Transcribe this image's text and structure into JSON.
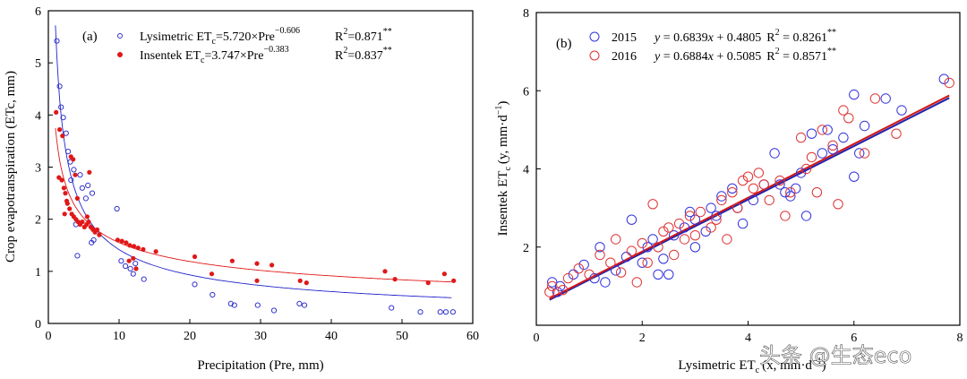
{
  "chart_data": [
    {
      "type": "scatter",
      "panel_label": "(a)",
      "xlabel": "Precipitation (Pre, mm)",
      "ylabel": "Crop evapotranspiration (ETc, mm)",
      "xlim": [
        0,
        60
      ],
      "ylim": [
        0,
        6
      ],
      "xticks": [
        0,
        10,
        20,
        30,
        40,
        50,
        60
      ],
      "yticks": [
        0,
        1,
        2,
        3,
        4,
        5,
        6
      ],
      "series": [
        {
          "name": "Lysimetric",
          "marker": "open-circle",
          "color": "#3333cc",
          "legend_name": "Lysimetric ET",
          "legend_sub": "c",
          "legend_eq": "=5.720×Pre",
          "legend_exp": "−0.606",
          "legend_r2": "R",
          "legend_r2_sup": "2",
          "legend_r2_val": "=0.871",
          "legend_sig": "**",
          "fit": {
            "a": 5.72,
            "b": -0.606,
            "color": "#2222cc"
          },
          "points": [
            [
              1.2,
              5.42
            ],
            [
              1.6,
              4.55
            ],
            [
              1.8,
              4.15
            ],
            [
              2.1,
              3.95
            ],
            [
              2.5,
              3.65
            ],
            [
              2.8,
              3.3
            ],
            [
              3.1,
              3.1
            ],
            [
              3.6,
              2.95
            ],
            [
              3.2,
              2.75
            ],
            [
              4.5,
              2.85
            ],
            [
              4.8,
              2.6
            ],
            [
              5.6,
              2.65
            ],
            [
              5.3,
              2.4
            ],
            [
              6.2,
              2.5
            ],
            [
              6.4,
              1.6
            ],
            [
              6.1,
              1.55
            ],
            [
              3.9,
              1.9
            ],
            [
              4.1,
              1.3
            ],
            [
              9.7,
              2.2
            ],
            [
              10.3,
              1.2
            ],
            [
              10.9,
              1.1
            ],
            [
              11.6,
              1.05
            ],
            [
              12.3,
              1.15
            ],
            [
              13.5,
              0.85
            ],
            [
              12.0,
              0.95
            ],
            [
              20.7,
              0.75
            ],
            [
              23.2,
              0.55
            ],
            [
              25.8,
              0.38
            ],
            [
              26.3,
              0.35
            ],
            [
              29.6,
              0.35
            ],
            [
              31.9,
              0.25
            ],
            [
              35.5,
              0.38
            ],
            [
              36.2,
              0.35
            ],
            [
              48.5,
              0.3
            ],
            [
              52.6,
              0.22
            ],
            [
              55.4,
              0.22
            ],
            [
              57.2,
              0.22
            ],
            [
              56.2,
              0.22
            ]
          ]
        },
        {
          "name": "Insentek",
          "marker": "filled-circle",
          "color": "#e01818",
          "legend_name": "Insentek ET",
          "legend_sub": "c",
          "legend_eq": "=3.747×Pre",
          "legend_exp": "−0.383",
          "legend_r2": "R",
          "legend_r2_sup": "2",
          "legend_r2_val": "=0.837",
          "legend_sig": "**",
          "fit": {
            "a": 3.747,
            "b": -0.383,
            "color": "#e01818"
          },
          "points": [
            [
              1.1,
              4.05
            ],
            [
              1.6,
              3.72
            ],
            [
              2.0,
              3.6
            ],
            [
              1.5,
              2.8
            ],
            [
              1.9,
              2.75
            ],
            [
              2.2,
              2.6
            ],
            [
              2.4,
              2.5
            ],
            [
              2.6,
              2.35
            ],
            [
              2.7,
              2.3
            ],
            [
              3.0,
              2.2
            ],
            [
              3.3,
              2.1
            ],
            [
              3.6,
              2.05
            ],
            [
              3.9,
              2.0
            ],
            [
              4.2,
              1.95
            ],
            [
              4.5,
              1.9
            ],
            [
              4.8,
              1.95
            ],
            [
              5.1,
              1.85
            ],
            [
              5.4,
              1.9
            ],
            [
              5.7,
              1.95
            ],
            [
              6.0,
              1.85
            ],
            [
              6.3,
              1.8
            ],
            [
              6.6,
              1.75
            ],
            [
              3.5,
              3.15
            ],
            [
              3.8,
              2.85
            ],
            [
              4.1,
              2.4
            ],
            [
              5.5,
              2.05
            ],
            [
              5.8,
              2.9
            ],
            [
              3.2,
              3.2
            ],
            [
              2.3,
              2.1
            ],
            [
              6.9,
              1.8
            ],
            [
              7.2,
              1.7
            ],
            [
              9.8,
              1.6
            ],
            [
              10.4,
              1.58
            ],
            [
              11.0,
              1.55
            ],
            [
              11.5,
              1.5
            ],
            [
              12.1,
              1.48
            ],
            [
              12.7,
              1.45
            ],
            [
              13.4,
              1.42
            ],
            [
              15.2,
              1.38
            ],
            [
              11.4,
              1.2
            ],
            [
              12.0,
              1.25
            ],
            [
              12.4,
              1.05
            ],
            [
              20.7,
              1.28
            ],
            [
              23.1,
              0.95
            ],
            [
              26.0,
              1.2
            ],
            [
              29.5,
              1.15
            ],
            [
              31.6,
              1.12
            ],
            [
              29.5,
              0.82
            ],
            [
              35.6,
              0.82
            ],
            [
              36.5,
              0.78
            ],
            [
              47.6,
              1.0
            ],
            [
              49.0,
              0.85
            ],
            [
              53.7,
              0.78
            ],
            [
              56.0,
              0.95
            ],
            [
              57.3,
              0.82
            ]
          ]
        }
      ]
    },
    {
      "type": "scatter",
      "panel_label": "(b)",
      "xlabel": "Lysimetric ET",
      "xlabel_sub": "c",
      "xlabel_unit": "(x, mm·d",
      "xlabel_unit_sup": "−1",
      "xlabel_unit_end": ")",
      "ylabel": "Insentek ET",
      "ylabel_sub": "c",
      "ylabel_unit": "(y, mm·d",
      "ylabel_unit_sup": "−1",
      "ylabel_unit_end": ")",
      "xlim": [
        0,
        8
      ],
      "ylim": [
        0,
        8
      ],
      "xticks": [
        0,
        2,
        4,
        6,
        8
      ],
      "yticks": [
        2,
        4,
        6,
        8
      ],
      "series": [
        {
          "name": "2015",
          "marker": "open-circle",
          "color": "#3333dd",
          "legend_eq_prefix": "y",
          "legend_eq": " = 0.6839",
          "legend_eq_var": "x",
          "legend_eq_rest": " + 0.4805",
          "legend_r2": "R",
          "legend_r2_sup": "2",
          "legend_r2_val": " = 0.8261",
          "legend_sig": "**",
          "fit": {
            "slope": 0.6839,
            "intercept": 0.4805,
            "x0": 0.25,
            "x1": 7.8,
            "color": "#2222aa"
          },
          "points": [
            [
              0.3,
              1.1
            ],
            [
              0.45,
              1.0
            ],
            [
              0.4,
              0.85
            ],
            [
              0.7,
              1.3
            ],
            [
              0.9,
              1.55
            ],
            [
              1.1,
              1.2
            ],
            [
              1.3,
              1.1
            ],
            [
              1.5,
              1.4
            ],
            [
              1.7,
              1.75
            ],
            [
              1.8,
              2.7
            ],
            [
              2.0,
              1.6
            ],
            [
              2.1,
              2.0
            ],
            [
              2.3,
              1.3
            ],
            [
              2.5,
              1.3
            ],
            [
              2.6,
              2.3
            ],
            [
              2.8,
              2.5
            ],
            [
              2.9,
              2.9
            ],
            [
              3.0,
              2.0
            ],
            [
              3.2,
              2.4
            ],
            [
              3.4,
              2.8
            ],
            [
              3.5,
              3.3
            ],
            [
              3.7,
              3.5
            ],
            [
              3.9,
              2.6
            ],
            [
              4.1,
              3.2
            ],
            [
              4.3,
              3.6
            ],
            [
              4.5,
              4.4
            ],
            [
              4.6,
              3.6
            ],
            [
              4.7,
              3.4
            ],
            [
              4.9,
              3.5
            ],
            [
              5.0,
              3.9
            ],
            [
              5.1,
              2.8
            ],
            [
              5.2,
              4.9
            ],
            [
              5.4,
              4.4
            ],
            [
              5.6,
              4.5
            ],
            [
              5.8,
              4.8
            ],
            [
              6.0,
              3.8
            ],
            [
              6.1,
              4.4
            ],
            [
              6.2,
              5.1
            ],
            [
              6.6,
              5.8
            ],
            [
              6.9,
              5.5
            ],
            [
              7.7,
              6.3
            ],
            [
              3.0,
              2.7
            ],
            [
              3.3,
              3.0
            ],
            [
              2.4,
              1.7
            ],
            [
              1.2,
              2.0
            ],
            [
              6.0,
              5.9
            ],
            [
              5.5,
              5.0
            ],
            [
              4.8,
              3.3
            ],
            [
              3.8,
              3.0
            ],
            [
              2.2,
              2.2
            ]
          ]
        },
        {
          "name": "2016",
          "marker": "open-circle",
          "color": "#e03333",
          "legend_eq_prefix": "y",
          "legend_eq": " = 0.6884",
          "legend_eq_var": "x",
          "legend_eq_rest": " + 0.5085",
          "legend_r2": "R",
          "legend_r2_sup": "2",
          "legend_r2_val": " = 0.8571",
          "legend_sig": "**",
          "fit": {
            "slope": 0.6884,
            "intercept": 0.5085,
            "x0": 0.25,
            "x1": 7.8,
            "color": "#d01818"
          },
          "points": [
            [
              0.25,
              0.85
            ],
            [
              0.3,
              1.0
            ],
            [
              0.5,
              0.9
            ],
            [
              0.6,
              1.2
            ],
            [
              0.8,
              1.45
            ],
            [
              1.0,
              1.3
            ],
            [
              1.2,
              1.8
            ],
            [
              1.4,
              1.6
            ],
            [
              1.6,
              1.35
            ],
            [
              1.8,
              1.9
            ],
            [
              1.9,
              1.1
            ],
            [
              2.0,
              2.1
            ],
            [
              2.1,
              1.6
            ],
            [
              2.2,
              3.1
            ],
            [
              2.3,
              2.0
            ],
            [
              2.5,
              2.5
            ],
            [
              2.6,
              1.8
            ],
            [
              2.7,
              2.6
            ],
            [
              2.8,
              2.2
            ],
            [
              2.9,
              2.8
            ],
            [
              3.0,
              2.3
            ],
            [
              3.1,
              2.9
            ],
            [
              3.3,
              2.5
            ],
            [
              3.5,
              3.2
            ],
            [
              3.6,
              2.2
            ],
            [
              3.7,
              3.4
            ],
            [
              3.8,
              3.0
            ],
            [
              3.9,
              3.7
            ],
            [
              4.0,
              3.8
            ],
            [
              4.1,
              3.5
            ],
            [
              4.2,
              3.9
            ],
            [
              4.3,
              3.6
            ],
            [
              4.4,
              3.2
            ],
            [
              4.6,
              3.7
            ],
            [
              4.7,
              2.8
            ],
            [
              4.8,
              3.4
            ],
            [
              5.0,
              4.8
            ],
            [
              5.1,
              4.0
            ],
            [
              5.2,
              4.3
            ],
            [
              5.3,
              3.4
            ],
            [
              5.4,
              5.0
            ],
            [
              5.6,
              4.6
            ],
            [
              5.7,
              3.1
            ],
            [
              5.8,
              5.5
            ],
            [
              5.9,
              5.3
            ],
            [
              6.2,
              4.4
            ],
            [
              6.4,
              5.8
            ],
            [
              6.8,
              4.9
            ],
            [
              7.8,
              6.2
            ],
            [
              2.4,
              2.4
            ],
            [
              3.4,
              2.7
            ],
            [
              1.5,
              2.2
            ]
          ]
        }
      ]
    }
  ],
  "watermark": "头条 @生态eco"
}
